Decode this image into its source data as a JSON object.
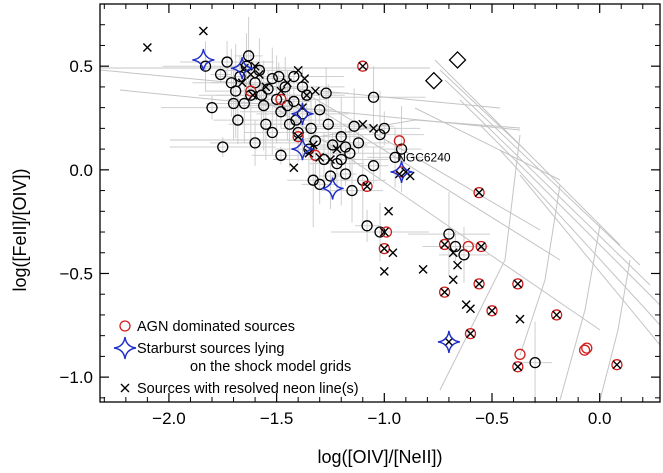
{
  "chart_data": {
    "type": "scatter",
    "xlabel": "log([OIV]/[NeII])",
    "ylabel": "log([FeII]/[OIV])",
    "xlim": [
      -2.32,
      0.28
    ],
    "ylim": [
      -1.12,
      0.8
    ],
    "xticks": [
      -2.0,
      -1.5,
      -1.0,
      -0.5,
      0.0
    ],
    "xtick_labels": [
      "−2.0",
      "−1.5",
      "−1.0",
      "−0.5",
      "0.0"
    ],
    "yticks": [
      0.5,
      0.0,
      -0.5,
      -1.0
    ],
    "ytick_labels": [
      "0.5",
      "0.0",
      "−0.5",
      "−1.0"
    ],
    "grid": false,
    "legend_position": "bottom-left",
    "legend": [
      {
        "symbol": "red-circle",
        "color": "#d21e1e",
        "lines": [
          "AGN dominated sources"
        ]
      },
      {
        "symbol": "blue-star",
        "color": "#1f2ec8",
        "lines": [
          "Starburst sources lying",
          "on the shock model grids"
        ]
      },
      {
        "symbol": "cross",
        "color": "#000000",
        "lines": [
          "Sources with resolved neon line(s)"
        ]
      }
    ],
    "annotations": [
      {
        "text": "NGC6240",
        "x": -0.94,
        "y": 0.04
      }
    ],
    "series": [
      {
        "points": [
          [
            -1.76,
            0.46
          ],
          [
            -1.73,
            0.52
          ],
          [
            -1.71,
            0.42
          ],
          [
            -1.69,
            0.38
          ],
          [
            -1.67,
            0.45
          ],
          [
            -1.64,
            0.5
          ],
          [
            -1.62,
            0.36
          ],
          [
            -1.6,
            0.42
          ],
          [
            -1.58,
            0.48
          ],
          [
            -1.56,
            0.31
          ],
          [
            -1.54,
            0.39
          ],
          [
            -1.52,
            0.44
          ],
          [
            -1.5,
            0.34
          ],
          [
            -1.48,
            0.28
          ],
          [
            -1.46,
            0.4
          ],
          [
            -1.44,
            0.22
          ],
          [
            -1.42,
            0.33
          ],
          [
            -1.4,
            0.18
          ],
          [
            -1.38,
            0.27
          ],
          [
            -1.36,
            0.36
          ],
          [
            -1.34,
            0.2
          ],
          [
            -1.32,
            0.14
          ],
          [
            -1.3,
            0.29
          ],
          [
            -1.28,
            0.05
          ],
          [
            -1.26,
            0.22
          ],
          [
            -1.24,
            0.12
          ],
          [
            -1.22,
            0.03
          ],
          [
            -1.2,
            0.16
          ],
          [
            -1.18,
            -0.02
          ],
          [
            -1.16,
            0.08
          ],
          [
            -1.14,
            0.21
          ],
          [
            -1.12,
            0.13
          ],
          [
            -1.68,
            0.24
          ],
          [
            -1.7,
            0.32
          ],
          [
            -1.75,
            0.11
          ],
          [
            -1.6,
            0.13
          ],
          [
            -1.55,
            0.22
          ],
          [
            -1.48,
            0.07
          ],
          [
            -1.52,
            0.18
          ],
          [
            -1.45,
            0.31
          ],
          [
            -1.42,
            0.45
          ],
          [
            -1.38,
            0.4
          ],
          [
            -1.35,
            0.1
          ],
          [
            -1.33,
            -0.05
          ],
          [
            -1.3,
            -0.07
          ],
          [
            -1.25,
            -0.03
          ],
          [
            -1.2,
            0.05
          ],
          [
            -1.18,
            0.11
          ],
          [
            -1.15,
            -0.1
          ],
          [
            -1.1,
            -0.05
          ],
          [
            -1.05,
            0.02
          ],
          [
            -1.05,
            0.35
          ],
          [
            -1.02,
            0.17
          ],
          [
            -1.0,
            0.2
          ],
          [
            -0.95,
            0.06
          ],
          [
            -0.92,
            0.1
          ],
          [
            -1.08,
            -0.27
          ],
          [
            -1.02,
            -0.3
          ],
          [
            -0.7,
            -0.31
          ],
          [
            -0.67,
            -0.37
          ],
          [
            -0.63,
            -0.41
          ],
          [
            -0.3,
            -0.93
          ],
          [
            -1.49,
            0.45
          ],
          [
            -1.57,
            0.36
          ],
          [
            -1.65,
            0.32
          ],
          [
            -1.41,
            0.24
          ],
          [
            -1.27,
            0.37
          ],
          [
            -1.63,
            0.55
          ],
          [
            -1.8,
            0.3
          ],
          [
            -1.83,
            0.5
          ]
        ],
        "marker": "circle",
        "color": "#000000"
      },
      {
        "points": [
          [
            -1.1,
            0.5
          ],
          [
            -1.4,
            0.16
          ],
          [
            -1.08,
            -0.08
          ],
          [
            -1.0,
            -0.38
          ],
          [
            -0.93,
            0.14
          ],
          [
            -0.56,
            -0.11
          ],
          [
            -0.55,
            -0.37
          ],
          [
            -0.61,
            -0.37
          ],
          [
            -0.56,
            -0.55
          ],
          [
            -0.72,
            -0.59
          ],
          [
            -0.6,
            -0.79
          ],
          [
            -0.5,
            -0.68
          ],
          [
            -0.38,
            -0.55
          ],
          [
            -0.2,
            -0.7
          ],
          [
            -0.06,
            -0.86
          ],
          [
            -0.07,
            -0.87
          ],
          [
            -0.37,
            -0.89
          ],
          [
            -0.38,
            -0.95
          ],
          [
            0.08,
            -0.94
          ],
          [
            -0.92,
            -0.01
          ],
          [
            -0.72,
            -0.36
          ],
          [
            -1.48,
            0.34
          ],
          [
            -1.32,
            0.07
          ],
          [
            -1.62,
            0.38
          ],
          [
            -0.99,
            -0.3
          ]
        ],
        "marker": "circle",
        "color": "#d21e1e"
      },
      {
        "points": [
          [
            -2.1,
            0.59
          ],
          [
            -1.84,
            0.67
          ],
          [
            -1.65,
            0.49
          ],
          [
            -1.62,
            0.46
          ],
          [
            -1.6,
            0.5
          ],
          [
            -1.66,
            0.42
          ],
          [
            -1.61,
            0.36
          ],
          [
            -1.45,
            0.42
          ],
          [
            -1.4,
            0.48
          ],
          [
            -1.37,
            0.44
          ],
          [
            -1.36,
            0.36
          ],
          [
            -1.38,
            0.3
          ],
          [
            -1.32,
            0.38
          ],
          [
            -1.4,
            0.16
          ],
          [
            -1.35,
            0.08
          ],
          [
            -1.3,
            0.06
          ],
          [
            -1.33,
            0.12
          ],
          [
            -1.42,
            0.01
          ],
          [
            -1.25,
            0.05
          ],
          [
            -1.1,
            0.5
          ],
          [
            -1.1,
            0.22
          ],
          [
            -1.05,
            0.2
          ],
          [
            -1.08,
            -0.08
          ],
          [
            -0.98,
            -0.2
          ],
          [
            -0.93,
            -0.02
          ],
          [
            -0.9,
            -0.01
          ],
          [
            -0.88,
            -0.03
          ],
          [
            -1.0,
            -0.3
          ],
          [
            -1.0,
            -0.38
          ],
          [
            -1.0,
            -0.49
          ],
          [
            -0.96,
            -0.4
          ],
          [
            -0.82,
            -0.48
          ],
          [
            -0.72,
            -0.36
          ],
          [
            -0.68,
            -0.4
          ],
          [
            -0.66,
            -0.46
          ],
          [
            -0.68,
            -0.53
          ],
          [
            -0.56,
            -0.11
          ],
          [
            -0.55,
            -0.37
          ],
          [
            -0.56,
            -0.55
          ],
          [
            -0.72,
            -0.59
          ],
          [
            -0.62,
            -0.65
          ],
          [
            -0.6,
            -0.67
          ],
          [
            -0.6,
            -0.79
          ],
          [
            -0.7,
            -0.83
          ],
          [
            -0.5,
            -0.68
          ],
          [
            -0.38,
            -0.55
          ],
          [
            -0.37,
            -0.72
          ],
          [
            -0.2,
            -0.7
          ],
          [
            -0.38,
            -0.95
          ],
          [
            0.08,
            -0.94
          ],
          [
            -1.58,
            0.46
          ],
          [
            -1.55,
            0.4
          ],
          [
            -1.48,
            0.38
          ],
          [
            -1.22,
            0.1
          ]
        ],
        "marker": "cross",
        "color": "#000000"
      },
      {
        "points": [
          [
            -1.84,
            0.53
          ],
          [
            -1.66,
            0.49
          ],
          [
            -1.38,
            0.27
          ],
          [
            -1.38,
            0.1
          ],
          [
            -1.24,
            -0.09
          ],
          [
            -0.92,
            -0.01
          ],
          [
            -0.7,
            -0.83
          ]
        ],
        "marker": "star",
        "color": "#1f2ec8"
      },
      {
        "points": [
          [
            -0.77,
            0.43
          ],
          [
            -0.66,
            0.53
          ]
        ],
        "marker": "diamond",
        "color": "#000000"
      }
    ]
  }
}
